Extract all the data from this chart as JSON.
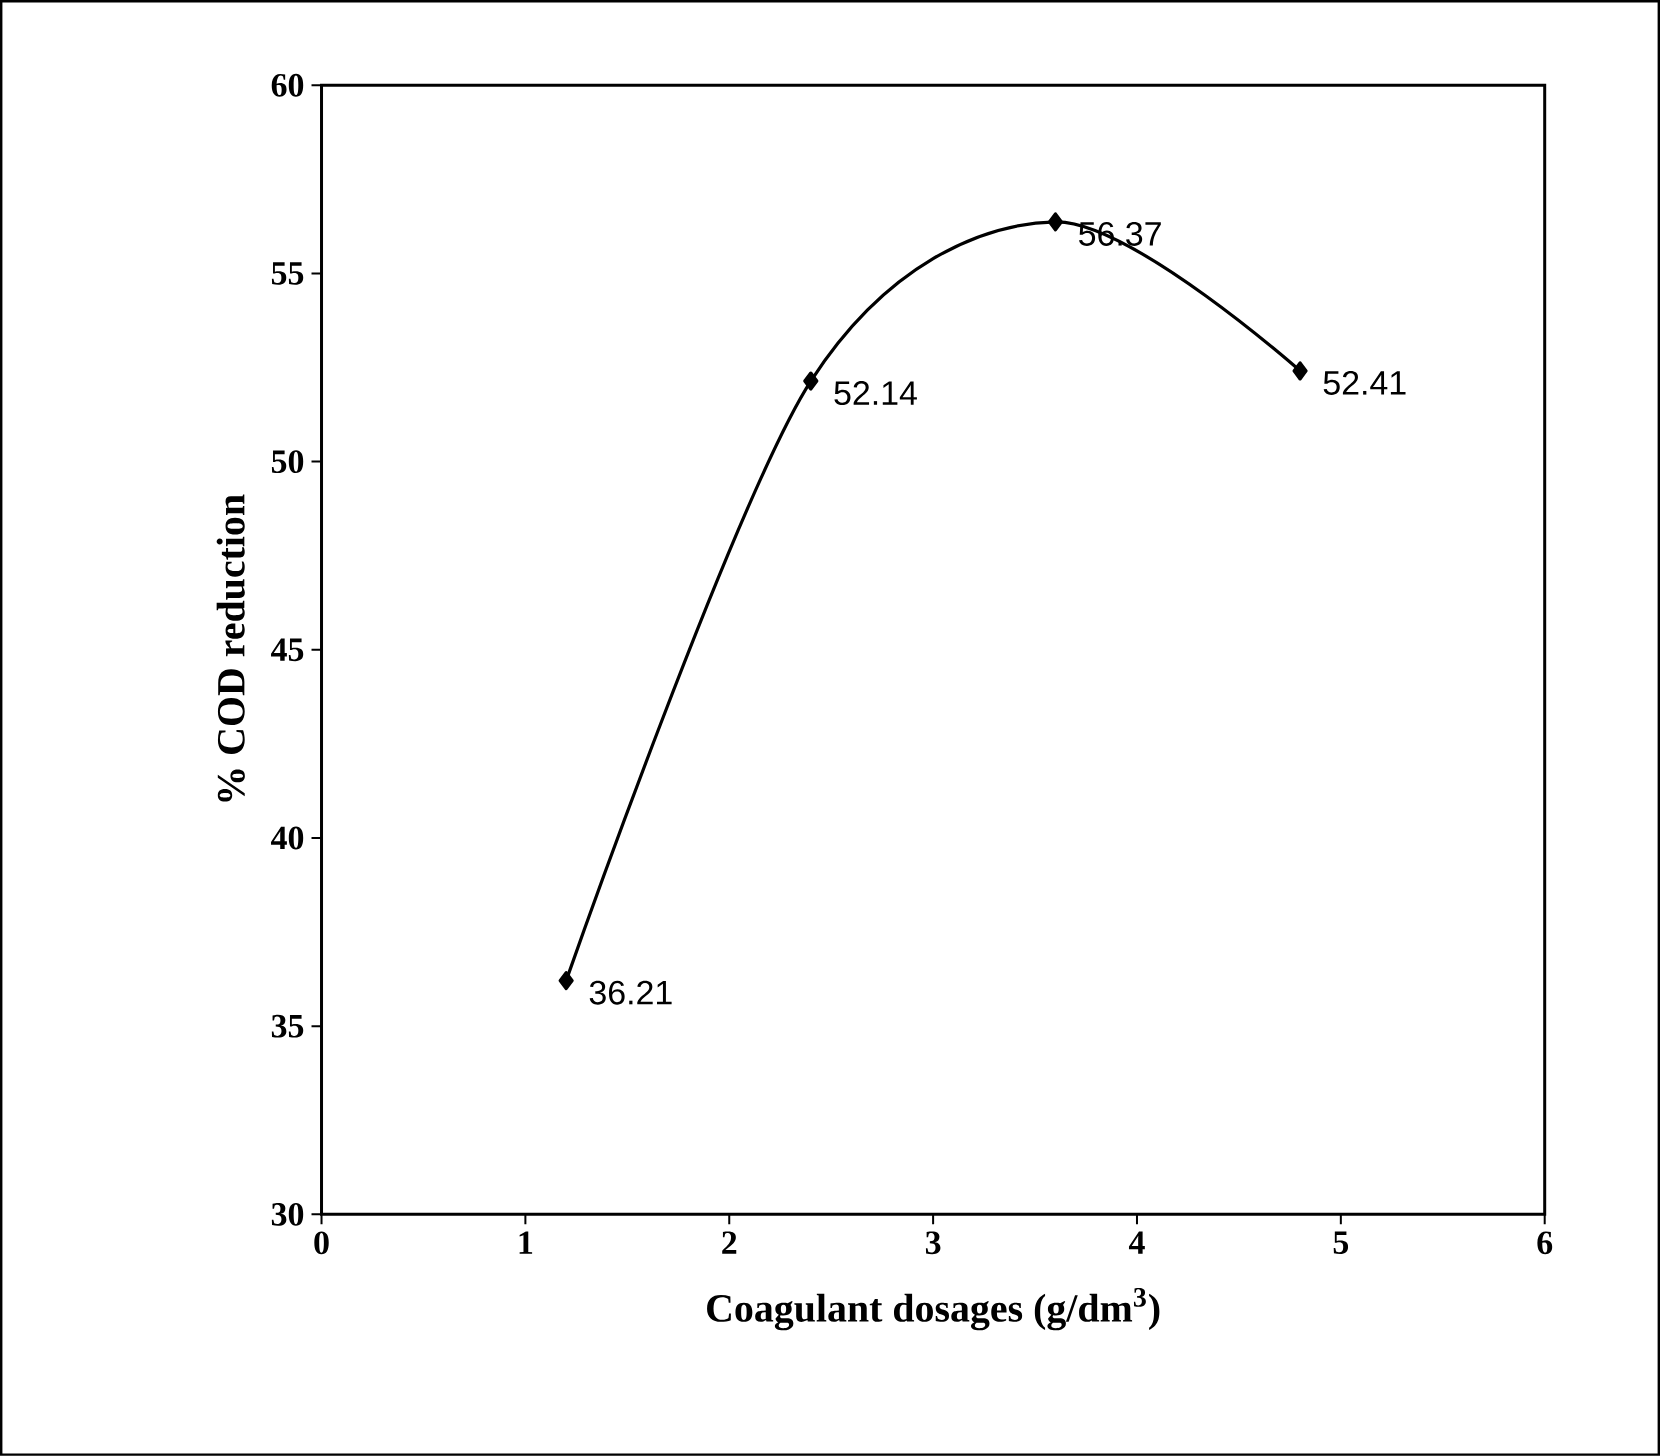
{
  "chart_data": {
    "type": "line",
    "xlabel": "Coagulant dosages (g/dm$^{3}$)",
    "ylabel": "% COD reduction",
    "x": [
      1.2,
      2.4,
      3.6,
      4.8
    ],
    "series": [
      {
        "color": "#000000",
        "values": [
          36.21,
          52.14,
          56.37,
          52.41
        ]
      }
    ],
    "xlim": [
      0,
      6
    ],
    "ylim": [
      30,
      60
    ],
    "xticks": [
      0,
      1,
      2,
      3,
      4,
      5,
      6
    ],
    "yticks": [
      30,
      35,
      40,
      45,
      50,
      55,
      60
    ],
    "marker": "diamond",
    "line_style": "solid",
    "data_labels": true,
    "grid": false
  }
}
